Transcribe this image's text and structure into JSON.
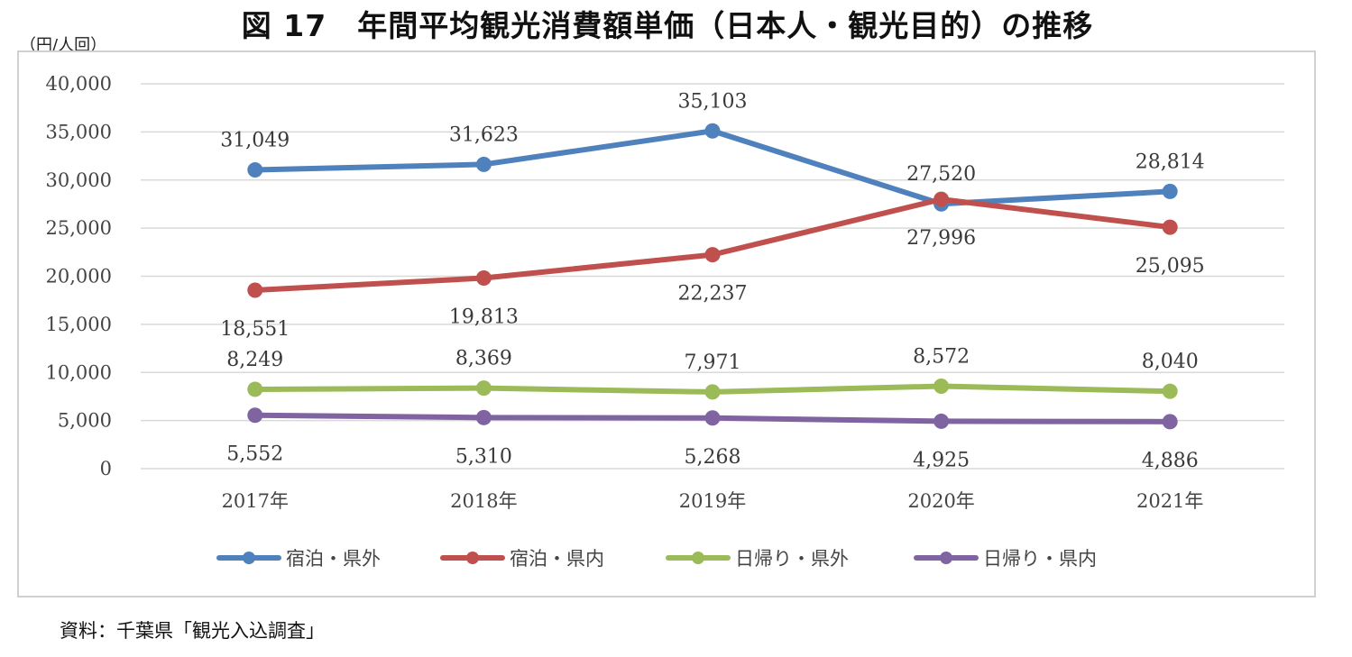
{
  "title": "図 17　年間平均観光消費額単価（日本人・観光目的）の推移",
  "unit_label": "（円/人回）",
  "source_note": "資料：千葉県「観光入込調査」",
  "chart_data": {
    "type": "line",
    "categories": [
      "2017年",
      "2018年",
      "2019年",
      "2020年",
      "2021年"
    ],
    "ylim": [
      0,
      40000
    ],
    "yticks": [
      "0",
      "5,000",
      "10,000",
      "15,000",
      "20,000",
      "25,000",
      "30,000",
      "35,000",
      "40,000"
    ],
    "grid": true,
    "legend_position": "bottom",
    "series": [
      {
        "name": "宿泊・県外",
        "color": "#4f81bd",
        "values": [
          31049,
          31623,
          35103,
          27520,
          28814
        ],
        "labels": [
          "31,049",
          "31,623",
          "35,103",
          "27,520",
          "28,814"
        ]
      },
      {
        "name": "宿泊・県内",
        "color": "#c0504d",
        "values": [
          18551,
          19813,
          22237,
          27996,
          25095
        ],
        "labels": [
          "18,551",
          "19,813",
          "22,237",
          "27,996",
          "25,095"
        ]
      },
      {
        "name": "日帰り・県外",
        "color": "#9bbb59",
        "values": [
          8249,
          8369,
          7971,
          8572,
          8040
        ],
        "labels": [
          "8,249",
          "8,369",
          "7,971",
          "8,572",
          "8,040"
        ]
      },
      {
        "name": "日帰り・県内",
        "color": "#8064a2",
        "values": [
          5552,
          5310,
          5268,
          4925,
          4886
        ],
        "labels": [
          "5,552",
          "5,310",
          "5,268",
          "4,925",
          "4,886"
        ]
      }
    ]
  }
}
